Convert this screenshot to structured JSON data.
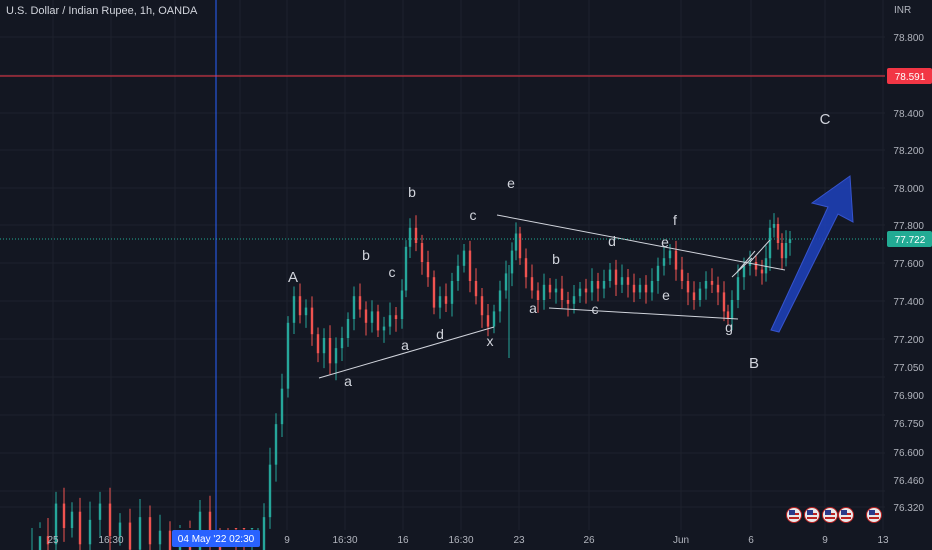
{
  "header": {
    "symbol_title": "U.S. Dollar / Indian Rupee, 1h, OANDA",
    "currency_unit": "INR"
  },
  "y_axis": {
    "ticks": [
      "78.800",
      "78.600",
      "78.400",
      "78.200",
      "78.000",
      "77.800",
      "77.600",
      "77.400",
      "77.200",
      "77.050",
      "76.900",
      "76.750",
      "76.600",
      "76.460",
      "76.320"
    ],
    "tick_values": [
      78.8,
      78.6,
      78.4,
      78.2,
      78.0,
      77.8,
      77.6,
      77.4,
      77.2,
      77.05,
      76.9,
      76.75,
      76.6,
      76.46,
      76.32
    ]
  },
  "x_axis": {
    "ticks": [
      "25",
      "16:30",
      "May",
      "04 May '22",
      "02:30",
      "9",
      "16:30",
      "16",
      "16:30",
      "23",
      "26",
      "Jun",
      "6",
      "9",
      "13"
    ]
  },
  "crosshair": {
    "time_label": "04 May '22  02:30",
    "color": "#2962ff"
  },
  "price_lines": {
    "alert_price": "78.591",
    "alert_color": "#f23645",
    "current_price": "77.722",
    "current_color": "#22ab94"
  },
  "wave_labels": [
    "A",
    "a",
    "b",
    "c",
    "a",
    "b",
    "d",
    "c",
    "x",
    "e",
    "a",
    "b",
    "c",
    "d",
    "e",
    "e",
    "f",
    "g",
    "B",
    "C"
  ],
  "colors": {
    "background": "#131722",
    "up_candle": "#26a69a",
    "down_candle": "#ef5350",
    "trendline": "#d1d4dc",
    "arrow": "#1e3fb5",
    "text": "#d1d4dc"
  },
  "icons": [
    "flag-icon",
    "flag-icon",
    "flag-icon",
    "flag-icon",
    "flag-icon"
  ]
}
